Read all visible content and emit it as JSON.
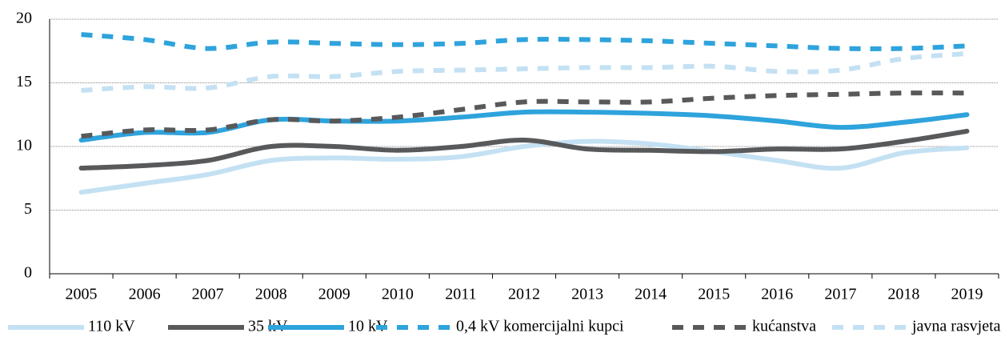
{
  "chart_data": {
    "type": "line",
    "categories": [
      "2005",
      "2006",
      "2007",
      "2008",
      "2009",
      "2010",
      "2011",
      "2012",
      "2013",
      "2014",
      "2015",
      "2016",
      "2017",
      "2018",
      "2019"
    ],
    "series": [
      {
        "name": "110 kV",
        "color": "#c4e1f3",
        "dashed": false,
        "values": [
          6.4,
          7.1,
          7.8,
          8.9,
          9.1,
          9.0,
          9.2,
          10.0,
          10.4,
          10.2,
          9.6,
          8.9,
          8.3,
          9.5,
          9.9
        ]
      },
      {
        "name": "35 kV",
        "color": "#58595b",
        "dashed": false,
        "values": [
          8.3,
          8.5,
          8.9,
          10.0,
          10.0,
          9.7,
          10.0,
          10.5,
          9.8,
          9.7,
          9.6,
          9.8,
          9.8,
          10.4,
          11.2
        ]
      },
      {
        "name": "10 kV",
        "color": "#2ea3dc",
        "dashed": false,
        "values": [
          10.5,
          11.1,
          11.1,
          12.1,
          12.0,
          12.0,
          12.3,
          12.7,
          12.7,
          12.6,
          12.4,
          12.0,
          11.5,
          11.9,
          12.5
        ]
      },
      {
        "name": "0,4 kV komercijalni kupci",
        "color": "#2ea3dc",
        "dashed": true,
        "values": [
          18.8,
          18.4,
          17.7,
          18.2,
          18.1,
          18.0,
          18.1,
          18.4,
          18.4,
          18.3,
          18.1,
          17.9,
          17.7,
          17.7,
          17.9
        ]
      },
      {
        "name": "kućanstva",
        "color": "#58595b",
        "dashed": true,
        "values": [
          10.8,
          11.3,
          11.3,
          12.1,
          12.0,
          12.3,
          12.9,
          13.5,
          13.5,
          13.5,
          13.8,
          14.0,
          14.1,
          14.2,
          14.2
        ]
      },
      {
        "name": "javna rasvjeta",
        "color": "#c4e1f3",
        "dashed": true,
        "values": [
          14.4,
          14.7,
          14.6,
          15.5,
          15.5,
          15.9,
          16.0,
          16.1,
          16.2,
          16.2,
          16.3,
          15.9,
          16.0,
          16.9,
          17.3
        ]
      }
    ],
    "ylim": [
      0,
      20
    ],
    "yticks": [
      0,
      5,
      10,
      15,
      20
    ],
    "grid": true,
    "legend": "bottom"
  }
}
